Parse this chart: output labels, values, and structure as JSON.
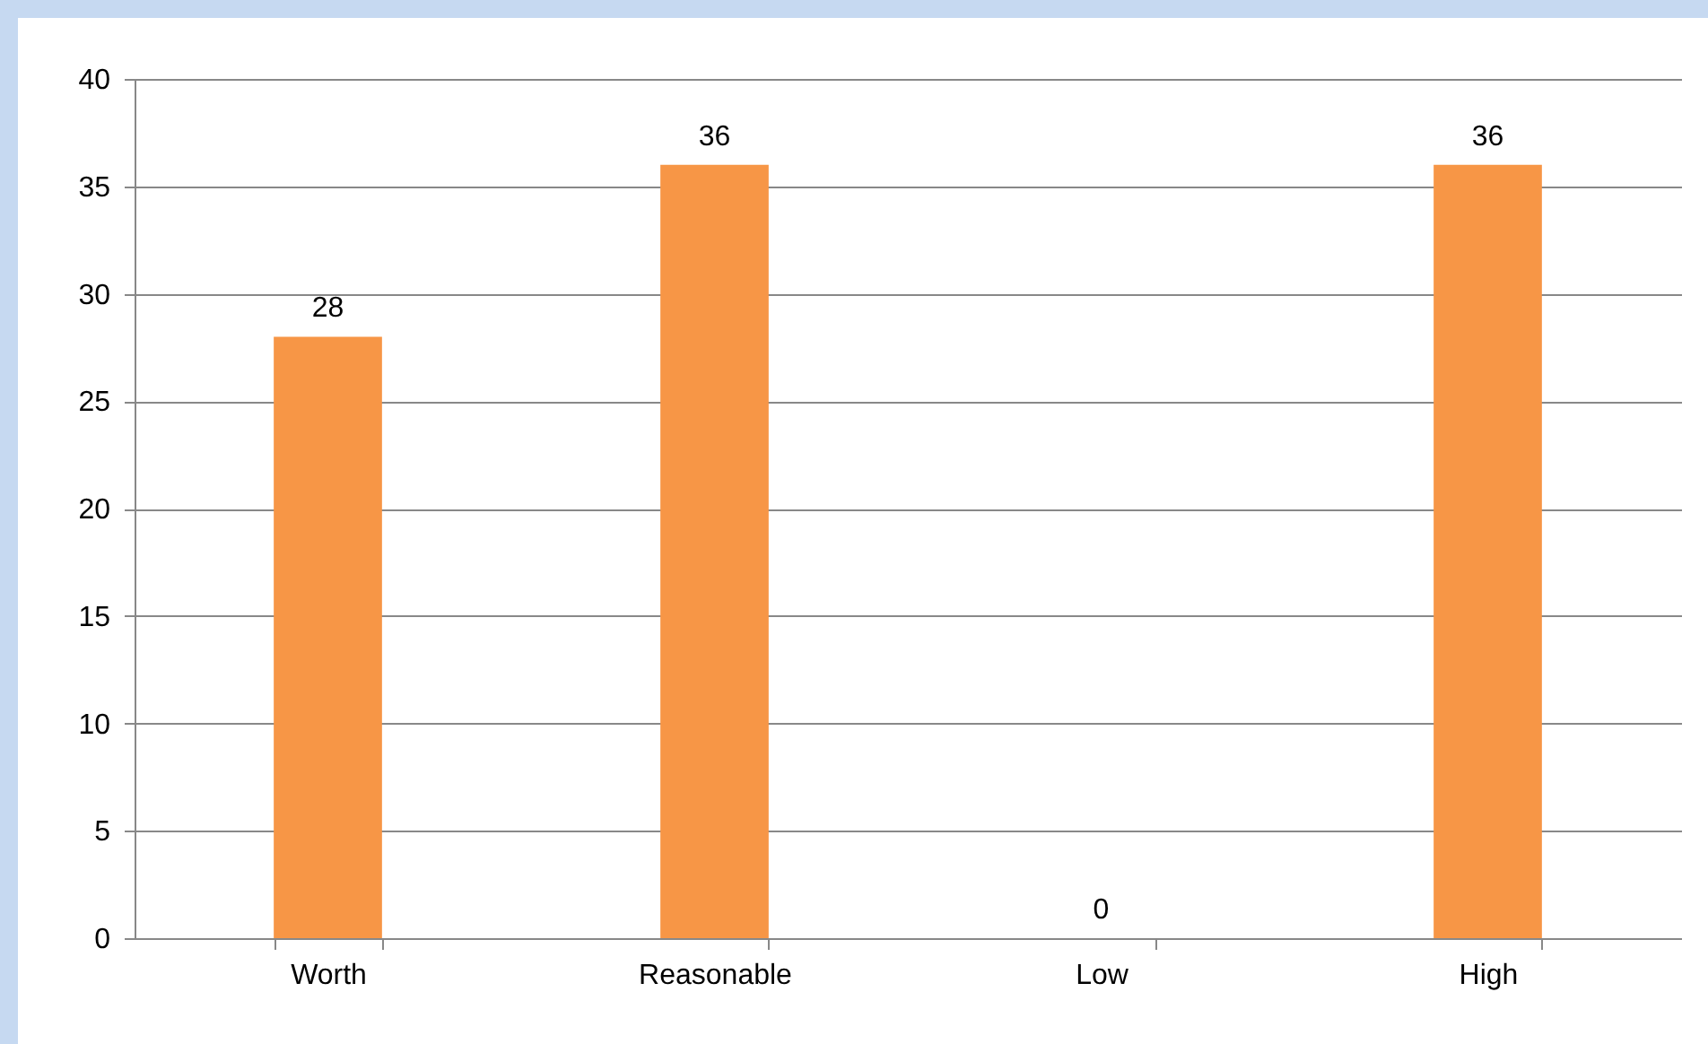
{
  "chart_data": {
    "type": "bar",
    "categories": [
      "Worth",
      "Reasonable",
      "Low",
      "High"
    ],
    "values": [
      28,
      36,
      0,
      36
    ],
    "color": "#f79646",
    "ylim": [
      0,
      40
    ],
    "yticks": [
      0,
      5,
      10,
      15,
      20,
      25,
      30,
      35,
      40
    ],
    "grid": "y",
    "data_labels": true
  }
}
